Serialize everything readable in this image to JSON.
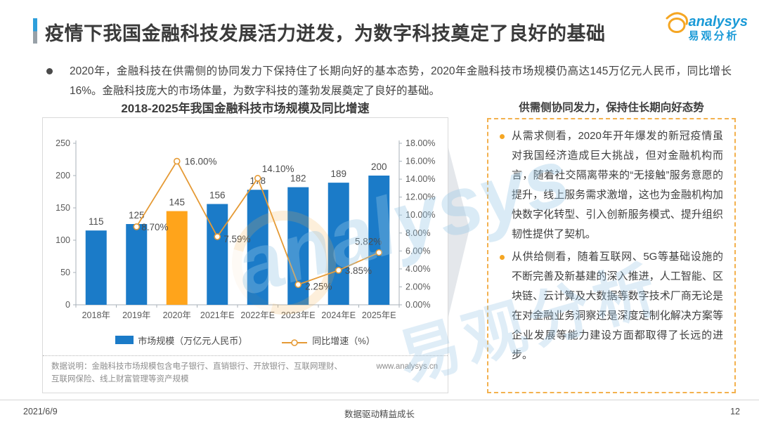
{
  "slide": {
    "title": "疫情下我国金融科技发展活力迸发，为数字科技奠定了良好的基础",
    "logo": {
      "en": "analysys",
      "cn": "易观分析"
    },
    "intro": "2020年，金融科技在供需侧的协同发力下保持住了长期向好的基本态势，2020年金融科技市场规模仍高达145万亿元人民币，同比增长16%。金融科技庞大的市场体量，为数字科技的蓬勃发展奠定了良好的基础。",
    "footer": {
      "date": "2021/6/9",
      "center": "数据驱动精益成长",
      "page": "12"
    }
  },
  "chart_data": {
    "type": "bar+line",
    "title": "2018-2025年我国金融科技市场规模及同比增速",
    "categories": [
      "2018年",
      "2019年",
      "2020年",
      "2021年E",
      "2022年E",
      "2023年E",
      "2024年E",
      "2025年E"
    ],
    "series": [
      {
        "name": "市场规模（万亿元人民币）",
        "type": "bar",
        "values": [
          115,
          125,
          145,
          156,
          178,
          182,
          189,
          200
        ],
        "color": "#1B7BC8",
        "highlight_index": 2,
        "highlight_color": "#FFA41B"
      },
      {
        "name": "同比增速（%）",
        "type": "line",
        "values": [
          null,
          8.7,
          16.0,
          7.59,
          14.1,
          2.25,
          3.85,
          5.82
        ],
        "labels": [
          null,
          "8.70%",
          "16.00%",
          "7.59%",
          "14.10%",
          "2.25%",
          "3.85%",
          "5.82%"
        ],
        "color": "#E59A35"
      }
    ],
    "left_axis": {
      "min": 0,
      "max": 250,
      "step": 50,
      "ticks": [
        "0",
        "50",
        "100",
        "150",
        "200",
        "250"
      ]
    },
    "right_axis": {
      "min": 0,
      "max": 18,
      "step": 2,
      "ticks": [
        "0.00%",
        "2.00%",
        "4.00%",
        "6.00%",
        "8.00%",
        "10.00%",
        "12.00%",
        "14.00%",
        "16.00%",
        "18.00%"
      ]
    },
    "grid": false,
    "legend_position": "bottom",
    "footnote": "数据说明：金融科技市场规模包含电子银行、直销银行、开放银行、互联网理财、互联网保险、线上财富管理等资产规模",
    "source_url": "www.analysys.cn"
  },
  "panel": {
    "title": "供需侧协同发力，保持住长期向好态势",
    "bullets": [
      "从需求侧看，2020年开年爆发的新冠疫情虽对我国经济造成巨大挑战，但对金融机构而言，随着社交隔离带来的“无接触”服务意愿的提升，线上服务需求激增，这也为金融机构加快数字化转型、引入创新服务模式、提升组织韧性提供了契机。",
      "从供给侧看，随着互联网、5G等基础设施的不断完善及新基建的深入推进，人工智能、区块链、云计算及大数据等数字技术厂商无论是在对金融业务洞察还是深度定制化解决方案等企业发展等能力建设方面都取得了长远的进步。"
    ]
  },
  "watermark": {
    "en": "analysys",
    "cn": "易观分析"
  }
}
